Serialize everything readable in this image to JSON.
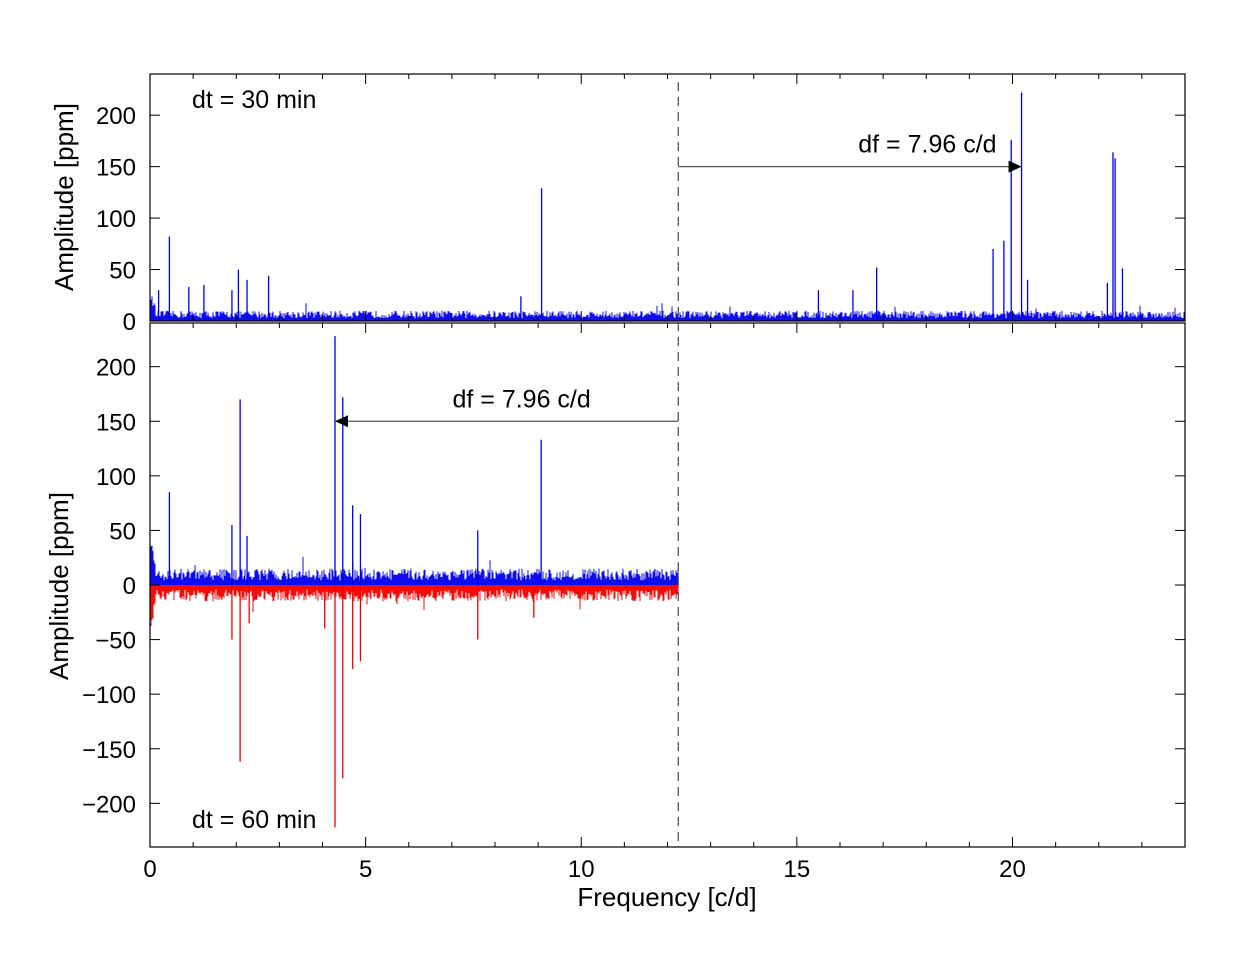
{
  "chart_data": [
    {
      "type": "line",
      "panel": "top",
      "ylabel": "Amplitude  [ppm]",
      "xlim": [
        0,
        24
      ],
      "ylim": [
        0,
        240
      ],
      "yticks": [
        0,
        50,
        100,
        150,
        200
      ],
      "grid": false,
      "annotations": [
        {
          "text": "dt = 30 min",
          "position": "top-left"
        },
        {
          "text": "df = 7.96 c/d",
          "from_x": 12.25,
          "to_x": 20.21,
          "y": 150
        }
      ],
      "series": [
        {
          "color": "#0000ee",
          "noise_level": 8,
          "peaks": [
            {
              "x": 0.45,
              "y": 82
            },
            {
              "x": 0.2,
              "y": 30
            },
            {
              "x": 0.9,
              "y": 33
            },
            {
              "x": 1.25,
              "y": 35
            },
            {
              "x": 2.05,
              "y": 50
            },
            {
              "x": 2.25,
              "y": 40
            },
            {
              "x": 2.75,
              "y": 44
            },
            {
              "x": 1.9,
              "y": 30
            },
            {
              "x": 8.6,
              "y": 24
            },
            {
              "x": 9.08,
              "y": 129
            },
            {
              "x": 15.5,
              "y": 30
            },
            {
              "x": 16.3,
              "y": 30
            },
            {
              "x": 16.85,
              "y": 52
            },
            {
              "x": 19.55,
              "y": 70
            },
            {
              "x": 19.8,
              "y": 78
            },
            {
              "x": 19.97,
              "y": 176
            },
            {
              "x": 20.21,
              "y": 222
            },
            {
              "x": 20.35,
              "y": 40
            },
            {
              "x": 22.2,
              "y": 37
            },
            {
              "x": 22.33,
              "y": 164
            },
            {
              "x": 22.38,
              "y": 158
            },
            {
              "x": 22.55,
              "y": 51
            }
          ]
        }
      ]
    },
    {
      "type": "line",
      "panel": "bottom",
      "xlabel": "Frequency  [c/d]",
      "ylabel": "Amplitude  [ppm]",
      "xlim": [
        0,
        24
      ],
      "ylim": [
        -240,
        240
      ],
      "xticks": [
        0,
        5,
        10,
        15,
        20
      ],
      "yticks": [
        -200,
        -150,
        -100,
        -50,
        0,
        50,
        100,
        150,
        200
      ],
      "grid": false,
      "annotations": [
        {
          "text": "dt = 60 min",
          "position": "bottom-left"
        },
        {
          "text": "df = 7.96 c/d",
          "from_x": 12.25,
          "to_x": 4.29,
          "y": 150
        }
      ],
      "series": [
        {
          "color": "#0000ee",
          "x_max": 12.25,
          "noise_level": 12,
          "peaks": [
            {
              "x": 0.45,
              "y": 85
            },
            {
              "x": 1.9,
              "y": 55
            },
            {
              "x": 2.09,
              "y": 170
            },
            {
              "x": 2.25,
              "y": 45
            },
            {
              "x": 4.29,
              "y": 228
            },
            {
              "x": 4.47,
              "y": 172
            },
            {
              "x": 4.7,
              "y": 73
            },
            {
              "x": 4.88,
              "y": 65
            },
            {
              "x": 7.6,
              "y": 50
            },
            {
              "x": 9.07,
              "y": 133
            }
          ]
        },
        {
          "color": "#ee0000",
          "x_max": 12.25,
          "noise_level": -12,
          "peaks": [
            {
              "x": 1.9,
              "y": -50
            },
            {
              "x": 2.09,
              "y": -162
            },
            {
              "x": 2.3,
              "y": -35
            },
            {
              "x": 4.05,
              "y": -40
            },
            {
              "x": 4.29,
              "y": -222
            },
            {
              "x": 4.47,
              "y": -177
            },
            {
              "x": 4.7,
              "y": -77
            },
            {
              "x": 4.88,
              "y": -70
            },
            {
              "x": 7.6,
              "y": -50
            },
            {
              "x": 8.9,
              "y": -30
            }
          ]
        }
      ]
    }
  ],
  "colors": {
    "blue_series": "#0000ee",
    "red_series": "#ee0000",
    "axes": "#000000",
    "marker_line": "#555555"
  },
  "marker_x": 12.25
}
